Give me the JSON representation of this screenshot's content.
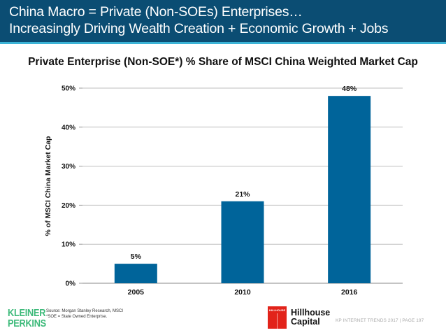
{
  "header": {
    "line1": "China Macro = Private (Non-SOEs) Enterprises…",
    "line2": "Increasingly Driving Wealth Creation + Economic Growth + Jobs",
    "background_color": "#0b4d73",
    "stripe_color": "#3bb3d6"
  },
  "chart_data": {
    "type": "bar",
    "title": "Private Enterprise (Non-SOE*) % Share of MSCI China Weighted Market Cap",
    "xlabel": "",
    "ylabel": "% of MSCI China Market Cap",
    "categories": [
      "2005",
      "2010",
      "2016"
    ],
    "values": [
      5,
      21,
      48
    ],
    "data_labels": [
      "5%",
      "21%",
      "48%"
    ],
    "ylim": [
      0,
      50
    ],
    "yticks": [
      0,
      10,
      20,
      30,
      40,
      50
    ],
    "ytick_labels": [
      "0%",
      "10%",
      "20%",
      "30%",
      "40%",
      "50%"
    ],
    "grid": true,
    "legend": "none",
    "bar_color": "#00649a"
  },
  "footer": {
    "brand_line1": "KLEINER",
    "brand_line2": "PERKINS",
    "source_line1": "Source: Morgan Stanley Research, MSCI",
    "source_line2": "*SOE = State Owned Enterprise.",
    "partner_mark": "HILLHOUSE",
    "partner_line1": "Hillhouse",
    "partner_line2": "Capital",
    "page_text": "KP INTERNET TRENDS 2017  |  PAGE 197",
    "brand_color": "#3dba7a",
    "partner_color": "#e2231a"
  }
}
